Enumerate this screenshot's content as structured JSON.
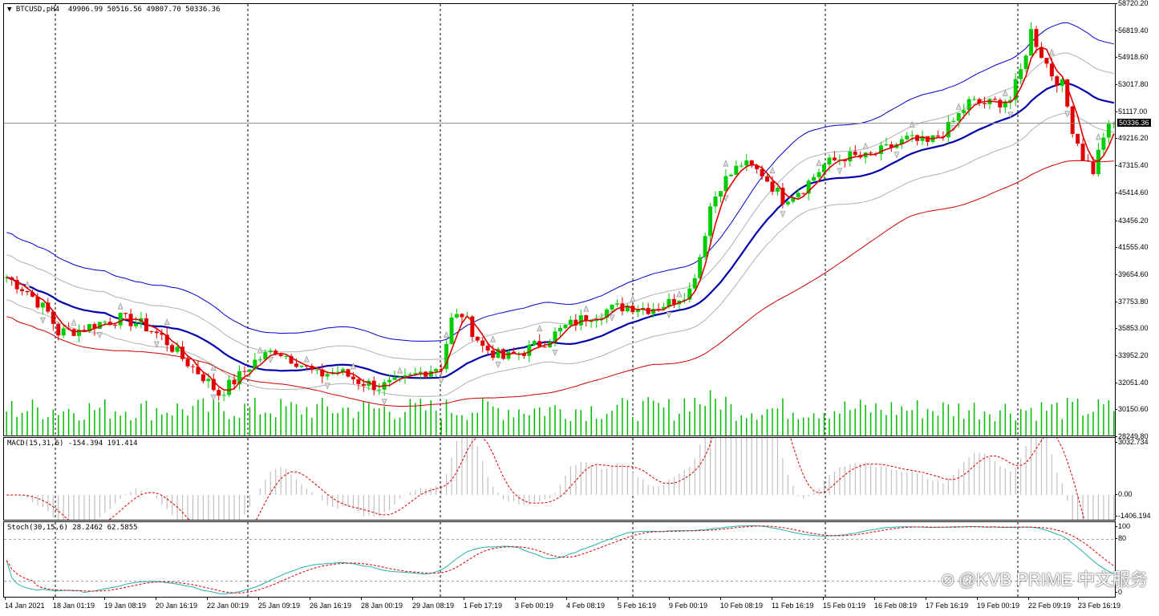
{
  "symbol_bar": {
    "arrow": "▼",
    "text": "BTCUSD,pH4  49906.99 50516.56 49807.70 50336.36"
  },
  "macd_label": "MACD(15,31,6) -154.394 191.414",
  "stoch_label": "Stoch(30,15,6) 28.2462 62.5855",
  "price_axis": [
    "58720.20",
    "56819.40",
    "54918.60",
    "53017.80",
    "51117.00",
    "49216.20",
    "47315.40",
    "45414.60",
    "43456.20",
    "41555.40",
    "39654.60",
    "37753.80",
    "35853.00",
    "33952.20",
    "32051.40",
    "30150.60",
    "28249.80"
  ],
  "current_price": "50336.36",
  "macd_axis": [
    "3032.734",
    "0.00",
    "-1406.194"
  ],
  "stoch_axis": [
    "100",
    "80",
    "0"
  ],
  "time_axis": [
    "14 Jan 2021",
    "18 Jan 01:19",
    "19 Jan 08:19",
    "20 Jan 16:19",
    "22 Jan 00:19",
    "25 Jan 09:19",
    "26 Jan 16:19",
    "28 Jan 00:19",
    "29 Jan 08:19",
    "1 Feb 17:19",
    "3 Feb 00:19",
    "4 Feb 08:19",
    "5 Feb 16:19",
    "9 Feb 00:19",
    "10 Feb 08:19",
    "11 Feb 16:19",
    "15 Feb 01:19",
    "16 Feb 08:19",
    "17 Feb 16:19",
    "19 Feb 00:19",
    "22 Feb 09:19",
    "23 Feb 16:19"
  ],
  "watermark": "@KVB PRIME 中文服务",
  "colors": {
    "bull": "#00cc00",
    "bear": "#e00000",
    "volume": "#00bb00",
    "bb_outer": "#0000cc",
    "ma_mid": "#0000aa",
    "ma_fast": "#dd0000",
    "ma_slow": "#cc0000",
    "envelope": "#b0b0b0",
    "macd_hist": "#c0c0c0",
    "macd_signal": "#dd0000",
    "stoch_main": "#20b2aa",
    "stoch_signal": "#dd0000"
  },
  "chart_data": {
    "type": "candlestick",
    "instrument": "BTCUSD",
    "timeframe": "H4",
    "ylim": [
      28249.8,
      58720.2
    ],
    "close_key": [
      [
        0,
        39500
      ],
      [
        4,
        38500
      ],
      [
        8,
        37000
      ],
      [
        10,
        35600
      ],
      [
        14,
        35800
      ],
      [
        18,
        36300
      ],
      [
        22,
        36600
      ],
      [
        26,
        36200
      ],
      [
        30,
        35300
      ],
      [
        34,
        33800
      ],
      [
        38,
        32500
      ],
      [
        41,
        31300
      ],
      [
        44,
        32200
      ],
      [
        48,
        33600
      ],
      [
        52,
        34400
      ],
      [
        56,
        33600
      ],
      [
        60,
        32600
      ],
      [
        64,
        32900
      ],
      [
        68,
        32200
      ],
      [
        72,
        31800
      ],
      [
        76,
        32100
      ],
      [
        80,
        32800
      ],
      [
        84,
        33300
      ],
      [
        86,
        36500
      ],
      [
        88,
        36900
      ],
      [
        92,
        34600
      ],
      [
        96,
        33800
      ],
      [
        100,
        34300
      ],
      [
        104,
        35000
      ],
      [
        108,
        36000
      ],
      [
        112,
        36700
      ],
      [
        116,
        37200
      ],
      [
        120,
        37500
      ],
      [
        124,
        37300
      ],
      [
        128,
        37700
      ],
      [
        132,
        38600
      ],
      [
        134,
        41000
      ],
      [
        136,
        44500
      ],
      [
        138,
        46000
      ],
      [
        142,
        47500
      ],
      [
        146,
        46800
      ],
      [
        150,
        45000
      ],
      [
        154,
        45800
      ],
      [
        158,
        47400
      ],
      [
        162,
        48000
      ],
      [
        166,
        47900
      ],
      [
        170,
        48500
      ],
      [
        174,
        49200
      ],
      [
        178,
        48900
      ],
      [
        182,
        50000
      ],
      [
        186,
        51800
      ],
      [
        190,
        51700
      ],
      [
        194,
        52000
      ],
      [
        196,
        54000
      ],
      [
        198,
        56800
      ],
      [
        200,
        55200
      ],
      [
        202,
        53800
      ],
      [
        204,
        53000
      ],
      [
        206,
        50000
      ],
      [
        208,
        48000
      ],
      [
        210,
        47000
      ],
      [
        212,
        49500
      ],
      [
        214,
        50336
      ]
    ],
    "macd_ylim": [
      -1406.194,
      3032.734
    ],
    "stoch_ylim": [
      0,
      100
    ]
  }
}
